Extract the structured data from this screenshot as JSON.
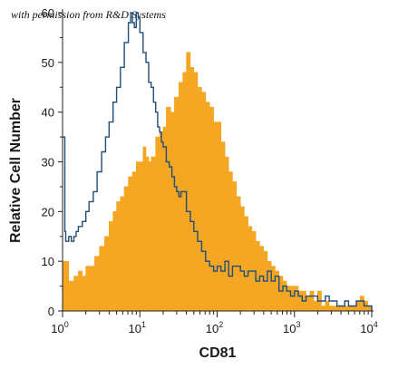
{
  "credit_text": "with permission from R&D Systems",
  "chart_data": {
    "type": "area",
    "title": "",
    "xlabel": "CD81",
    "ylabel": "Relative Cell Number",
    "xscale": "log",
    "xlim": [
      1,
      10000
    ],
    "ylim": [
      0,
      60
    ],
    "x_ticks": [
      {
        "value": 1,
        "base": "10",
        "exp": "0"
      },
      {
        "value": 10,
        "base": "10",
        "exp": "1"
      },
      {
        "value": 100,
        "base": "10",
        "exp": "2"
      },
      {
        "value": 1000,
        "base": "10",
        "exp": "3"
      },
      {
        "value": 10000,
        "base": "10",
        "exp": "4"
      }
    ],
    "y_ticks": [
      {
        "value": 0,
        "label": "0"
      },
      {
        "value": 10,
        "label": "10"
      },
      {
        "value": 20,
        "label": "20"
      },
      {
        "value": 30,
        "label": "30"
      },
      {
        "value": 40,
        "label": "40"
      },
      {
        "value": 50,
        "label": "50"
      },
      {
        "value": 60,
        "label": "60"
      }
    ],
    "grid": false,
    "legend": "none",
    "series": [
      {
        "style": "filled",
        "color": "#f5a623",
        "points": [
          [
            1.0,
            10
          ],
          [
            1.2,
            6
          ],
          [
            1.4,
            7
          ],
          [
            1.6,
            8
          ],
          [
            1.8,
            7
          ],
          [
            2.0,
            9
          ],
          [
            2.3,
            9
          ],
          [
            2.6,
            11
          ],
          [
            3.0,
            13
          ],
          [
            3.5,
            15
          ],
          [
            4.0,
            18
          ],
          [
            4.5,
            20
          ],
          [
            5.0,
            22
          ],
          [
            5.6,
            23
          ],
          [
            6.3,
            25
          ],
          [
            7.1,
            27
          ],
          [
            8.0,
            28
          ],
          [
            9.0,
            30
          ],
          [
            10,
            30
          ],
          [
            11,
            33
          ],
          [
            12,
            31
          ],
          [
            13,
            30
          ],
          [
            14,
            31
          ],
          [
            16,
            35
          ],
          [
            18,
            36
          ],
          [
            20,
            37
          ],
          [
            22,
            41
          ],
          [
            25,
            40
          ],
          [
            28,
            43
          ],
          [
            32,
            46
          ],
          [
            36,
            48
          ],
          [
            40,
            52
          ],
          [
            45,
            49
          ],
          [
            50,
            48
          ],
          [
            56,
            45
          ],
          [
            63,
            44
          ],
          [
            71,
            42
          ],
          [
            80,
            41
          ],
          [
            90,
            38
          ],
          [
            100,
            38
          ],
          [
            112,
            34
          ],
          [
            126,
            31
          ],
          [
            141,
            28
          ],
          [
            158,
            26
          ],
          [
            178,
            23
          ],
          [
            200,
            21
          ],
          [
            224,
            19
          ],
          [
            251,
            17
          ],
          [
            282,
            16
          ],
          [
            316,
            14
          ],
          [
            355,
            13
          ],
          [
            398,
            12
          ],
          [
            447,
            10
          ],
          [
            501,
            9
          ],
          [
            562,
            8
          ],
          [
            631,
            7
          ],
          [
            708,
            6
          ],
          [
            794,
            5
          ],
          [
            891,
            5
          ],
          [
            1000,
            5
          ],
          [
            1122,
            4
          ],
          [
            1259,
            4
          ],
          [
            1413,
            3
          ],
          [
            1585,
            4
          ],
          [
            1778,
            2
          ],
          [
            1995,
            4
          ],
          [
            2239,
            1
          ],
          [
            2512,
            2
          ],
          [
            2818,
            1
          ],
          [
            3162,
            1
          ],
          [
            3548,
            1
          ],
          [
            3981,
            1
          ],
          [
            4467,
            1
          ],
          [
            5012,
            1
          ],
          [
            5623,
            1
          ],
          [
            6310,
            2
          ],
          [
            7079,
            3
          ],
          [
            7943,
            2
          ],
          [
            8913,
            1
          ],
          [
            10000,
            0
          ]
        ]
      },
      {
        "style": "outline",
        "color": "#1f4e79",
        "points": [
          [
            1.0,
            35
          ],
          [
            1.05,
            35
          ],
          [
            1.07,
            16
          ],
          [
            1.1,
            14
          ],
          [
            1.2,
            15
          ],
          [
            1.3,
            14
          ],
          [
            1.4,
            15
          ],
          [
            1.5,
            16
          ],
          [
            1.6,
            17
          ],
          [
            1.8,
            18
          ],
          [
            2.0,
            20
          ],
          [
            2.2,
            22
          ],
          [
            2.5,
            24
          ],
          [
            2.8,
            28
          ],
          [
            3.2,
            32
          ],
          [
            3.6,
            35
          ],
          [
            4.0,
            38
          ],
          [
            4.5,
            42
          ],
          [
            5.0,
            45
          ],
          [
            5.6,
            49
          ],
          [
            6.3,
            54
          ],
          [
            7.1,
            58
          ],
          [
            7.6,
            60
          ],
          [
            8.0,
            58
          ],
          [
            8.5,
            57
          ],
          [
            9.0,
            60
          ],
          [
            9.5,
            59
          ],
          [
            10,
            56
          ],
          [
            11,
            52
          ],
          [
            12,
            50
          ],
          [
            13,
            46
          ],
          [
            14,
            45
          ],
          [
            15,
            42
          ],
          [
            16,
            40
          ],
          [
            17,
            37
          ],
          [
            18,
            36
          ],
          [
            19,
            34
          ],
          [
            20,
            33
          ],
          [
            22,
            30
          ],
          [
            24,
            29
          ],
          [
            26,
            27
          ],
          [
            28,
            25
          ],
          [
            30,
            24
          ],
          [
            32,
            23
          ],
          [
            34,
            24
          ],
          [
            36,
            24
          ],
          [
            38,
            24
          ],
          [
            40,
            20
          ],
          [
            45,
            18
          ],
          [
            50,
            16
          ],
          [
            56,
            14
          ],
          [
            63,
            12
          ],
          [
            71,
            10
          ],
          [
            80,
            9
          ],
          [
            90,
            8
          ],
          [
            100,
            9
          ],
          [
            112,
            8
          ],
          [
            126,
            10
          ],
          [
            141,
            7
          ],
          [
            158,
            9
          ],
          [
            178,
            9
          ],
          [
            200,
            8
          ],
          [
            224,
            7
          ],
          [
            251,
            8
          ],
          [
            282,
            8
          ],
          [
            316,
            6
          ],
          [
            355,
            7
          ],
          [
            398,
            6
          ],
          [
            447,
            8
          ],
          [
            501,
            6
          ],
          [
            562,
            7
          ],
          [
            631,
            4
          ],
          [
            708,
            5
          ],
          [
            794,
            4
          ],
          [
            891,
            3
          ],
          [
            1000,
            4
          ],
          [
            1122,
            3
          ],
          [
            1259,
            2
          ],
          [
            1413,
            3
          ],
          [
            1585,
            3
          ],
          [
            1778,
            3
          ],
          [
            1995,
            2
          ],
          [
            2239,
            2
          ],
          [
            2512,
            3
          ],
          [
            2818,
            2
          ],
          [
            3162,
            2
          ],
          [
            3548,
            1
          ],
          [
            3981,
            1
          ],
          [
            4467,
            2
          ],
          [
            5012,
            1
          ],
          [
            5623,
            1
          ],
          [
            6310,
            2
          ],
          [
            7079,
            2
          ],
          [
            7943,
            1
          ],
          [
            8913,
            1
          ],
          [
            10000,
            0
          ]
        ]
      }
    ]
  }
}
